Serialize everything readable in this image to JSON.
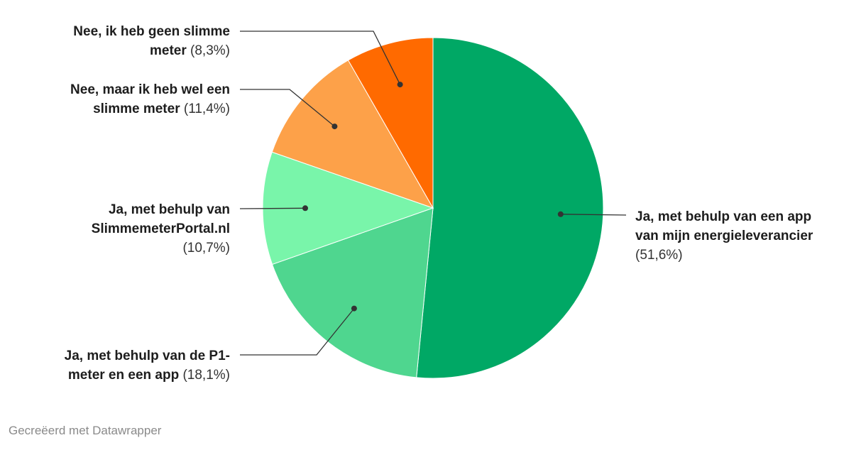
{
  "chart_data": {
    "type": "pie",
    "start_angle_deg": 0,
    "direction": "clockwise",
    "slices": [
      {
        "label": "Ja, met behulp van een app van mijn energieleverancier",
        "value": 51.6,
        "value_label": "(51,6%)",
        "color": "#00a865"
      },
      {
        "label": "Ja, met behulp van de P1-meter en een app",
        "value": 18.1,
        "value_label": "(18,1%)",
        "color": "#4fd68f"
      },
      {
        "label": "Ja, met behulp van SlimmemeterPortal.nl",
        "value": 10.7,
        "value_label": "(10,7%)",
        "color": "#79f5aa"
      },
      {
        "label": "Nee, maar ik heb wel een slimme meter",
        "value": 11.4,
        "value_label": "(11,4%)",
        "color": "#fda149"
      },
      {
        "label": "Nee, ik heb geen slimme meter",
        "value": 8.3,
        "value_label": "(8,3%)",
        "color": "#ff6a00"
      }
    ],
    "label_lines": [
      [
        "Ja, met behulp van een app",
        "van mijn energieleverancier"
      ],
      [
        "Ja, met behulp van de P1-",
        "meter en een app"
      ],
      [
        "Ja, met behulp van",
        "SlimmemeterPortal.nl"
      ],
      [
        "Nee, maar ik heb wel een",
        "slimme meter"
      ],
      [
        "Nee, ik heb geen slimme",
        "meter"
      ]
    ]
  },
  "footer": {
    "credit": "Gecreëerd met Datawrapper"
  }
}
